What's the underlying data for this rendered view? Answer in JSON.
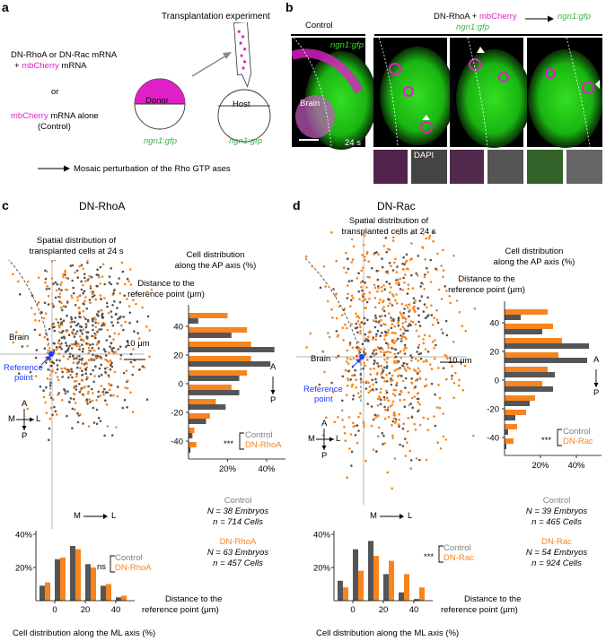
{
  "panel_a": {
    "letter": "a",
    "title": "Transplantation experiment",
    "line1": "DN-RhoA or DN-Rac mRNA",
    "line2_plus": "+",
    "line2_mag": "mbCherry",
    "line2_rest": "mRNA",
    "or": "or",
    "line3_mag": "mbCherry",
    "line3_rest": "mRNA alone",
    "line4": "(Control)",
    "donor": "Donor",
    "host": "Host",
    "donor_gfp": "ngn1:gfp",
    "host_gfp": "ngn1:gfp",
    "bottom_note": "Mosaic perturbation of the Rho GTP ases"
  },
  "panel_b": {
    "letter": "b",
    "control": "Control",
    "head1": "DN-RhoA",
    "head_plus": "+",
    "head_mag": "mbCherry",
    "head_grn": "ngn1:gfp",
    "arrow_target": "ngn1:gfp",
    "img_gfp": "ngn1:gfp",
    "brain": "Brain",
    "time": "24 s",
    "dapi": "DAPI"
  },
  "panel_c": {
    "letter": "c",
    "title": "DN-RhoA",
    "spatial1": "Spatial distribution of",
    "spatial2": "transplanted cells at 24 s",
    "ap1": "Cell distribution",
    "ap2": "along the AP axis (%)",
    "dist1": "Distance to the",
    "dist2": "reference point (μm)",
    "brain": "Brain",
    "ref1": "Reference",
    "ref2": "point",
    "scale": "10 μm",
    "axis_A": "A",
    "axis_P": "P",
    "axis_M": "M",
    "axis_L": "L",
    "ml_M": "M",
    "ml_L": "L",
    "sig_ap": "***",
    "sig_ml": "ns",
    "legend_control": "Control",
    "legend_treat": "DN-RhoA",
    "stats_control": "Control",
    "stats_control_N": "N = 38 Embryos",
    "stats_control_n": "n = 714 Cells",
    "stats_treat": "DN-RhoA",
    "stats_treat_N": "N = 63 Embryos",
    "stats_treat_n": "n = 457 Cells",
    "ml_dist1": "Distance to the",
    "ml_dist2": "reference point (μm)",
    "ml_caption": "Cell distribution along the ML axis (%)"
  },
  "panel_d": {
    "letter": "d",
    "title": "DN-Rac",
    "spatial1": "Spatial distribution of",
    "spatial2": "transplanted cells at 24 s",
    "ap1": "Cell distribution",
    "ap2": "along the AP axis (%)",
    "dist1": "Distance to the",
    "dist2": "reference point (μm)",
    "brain": "Brain",
    "ref1": "Reference",
    "ref2": "point",
    "scale": "10 μm",
    "axis_A": "A",
    "axis_P": "P",
    "axis_M": "M",
    "axis_L": "L",
    "ml_M": "M",
    "ml_L": "L",
    "sig_ap": "***",
    "sig_ml": "***",
    "legend_control": "Control",
    "legend_treat": "DN-Rac",
    "stats_control": "Control",
    "stats_control_N": "N = 39 Embryos",
    "stats_control_n": "n = 465 Cells",
    "stats_treat": "DN-Rac",
    "stats_treat_N": "N = 54 Embryos",
    "stats_treat_n": "n = 924 Cells",
    "ml_dist1": "Distance to the",
    "ml_dist2": "reference point (μm)",
    "ml_caption": "Cell distribution along the ML axis (%)"
  },
  "colors": {
    "control": "#555555",
    "treat": "#f7841e",
    "magenta": "#e020c8",
    "green": "#39b54a",
    "blue": "#1a3bff"
  },
  "chart_data": [
    {
      "id": "c-ap",
      "type": "bar",
      "orientation": "horizontal",
      "categories": [
        45,
        35,
        25,
        15,
        5,
        -5,
        -15,
        -25,
        -35,
        -45
      ],
      "series": [
        {
          "name": "Control",
          "values": [
            5,
            22,
            44,
            42,
            26,
            26,
            19,
            9,
            2,
            1
          ]
        },
        {
          "name": "DN-RhoA",
          "values": [
            20,
            30,
            32,
            32,
            30,
            22,
            14,
            11,
            3,
            4
          ]
        }
      ],
      "yticks": [
        40,
        20,
        0,
        -20,
        -40
      ],
      "xticks": [
        "20%",
        "40%"
      ],
      "xlim": [
        0,
        46
      ]
    },
    {
      "id": "d-ap",
      "type": "bar",
      "orientation": "horizontal",
      "categories": [
        45,
        35,
        25,
        15,
        5,
        -5,
        -15,
        -25,
        -35,
        -45
      ],
      "series": [
        {
          "name": "Control",
          "values": [
            9,
            21,
            47,
            46,
            28,
            27,
            14,
            6,
            2,
            1
          ]
        },
        {
          "name": "DN-Rac",
          "values": [
            24,
            27,
            32,
            30,
            24,
            21,
            17,
            12,
            7,
            5
          ]
        }
      ],
      "yticks": [
        40,
        20,
        0,
        -20,
        -40
      ],
      "xticks": [
        "20%",
        "40%"
      ],
      "xlim": [
        0,
        50
      ]
    },
    {
      "id": "c-ml",
      "type": "bar",
      "categories": [
        -5,
        5,
        15,
        25,
        35,
        45
      ],
      "series": [
        {
          "name": "Control",
          "values": [
            9,
            25,
            33,
            22,
            9,
            2
          ]
        },
        {
          "name": "DN-RhoA",
          "values": [
            11,
            26,
            31,
            20,
            10,
            3
          ]
        }
      ],
      "yticks": [
        "20%",
        "40%"
      ],
      "xticks": [
        0,
        20,
        40
      ],
      "ylim": [
        0,
        40
      ]
    },
    {
      "id": "d-ml",
      "type": "bar",
      "categories": [
        -5,
        5,
        15,
        25,
        35,
        45
      ],
      "series": [
        {
          "name": "Control",
          "values": [
            12,
            31,
            36,
            16,
            5,
            1
          ]
        },
        {
          "name": "DN-Rac",
          "values": [
            8,
            18,
            27,
            24,
            16,
            8
          ]
        }
      ],
      "yticks": [
        "20%",
        "40%"
      ],
      "xticks": [
        0,
        20,
        40
      ],
      "ylim": [
        0,
        40
      ]
    }
  ]
}
